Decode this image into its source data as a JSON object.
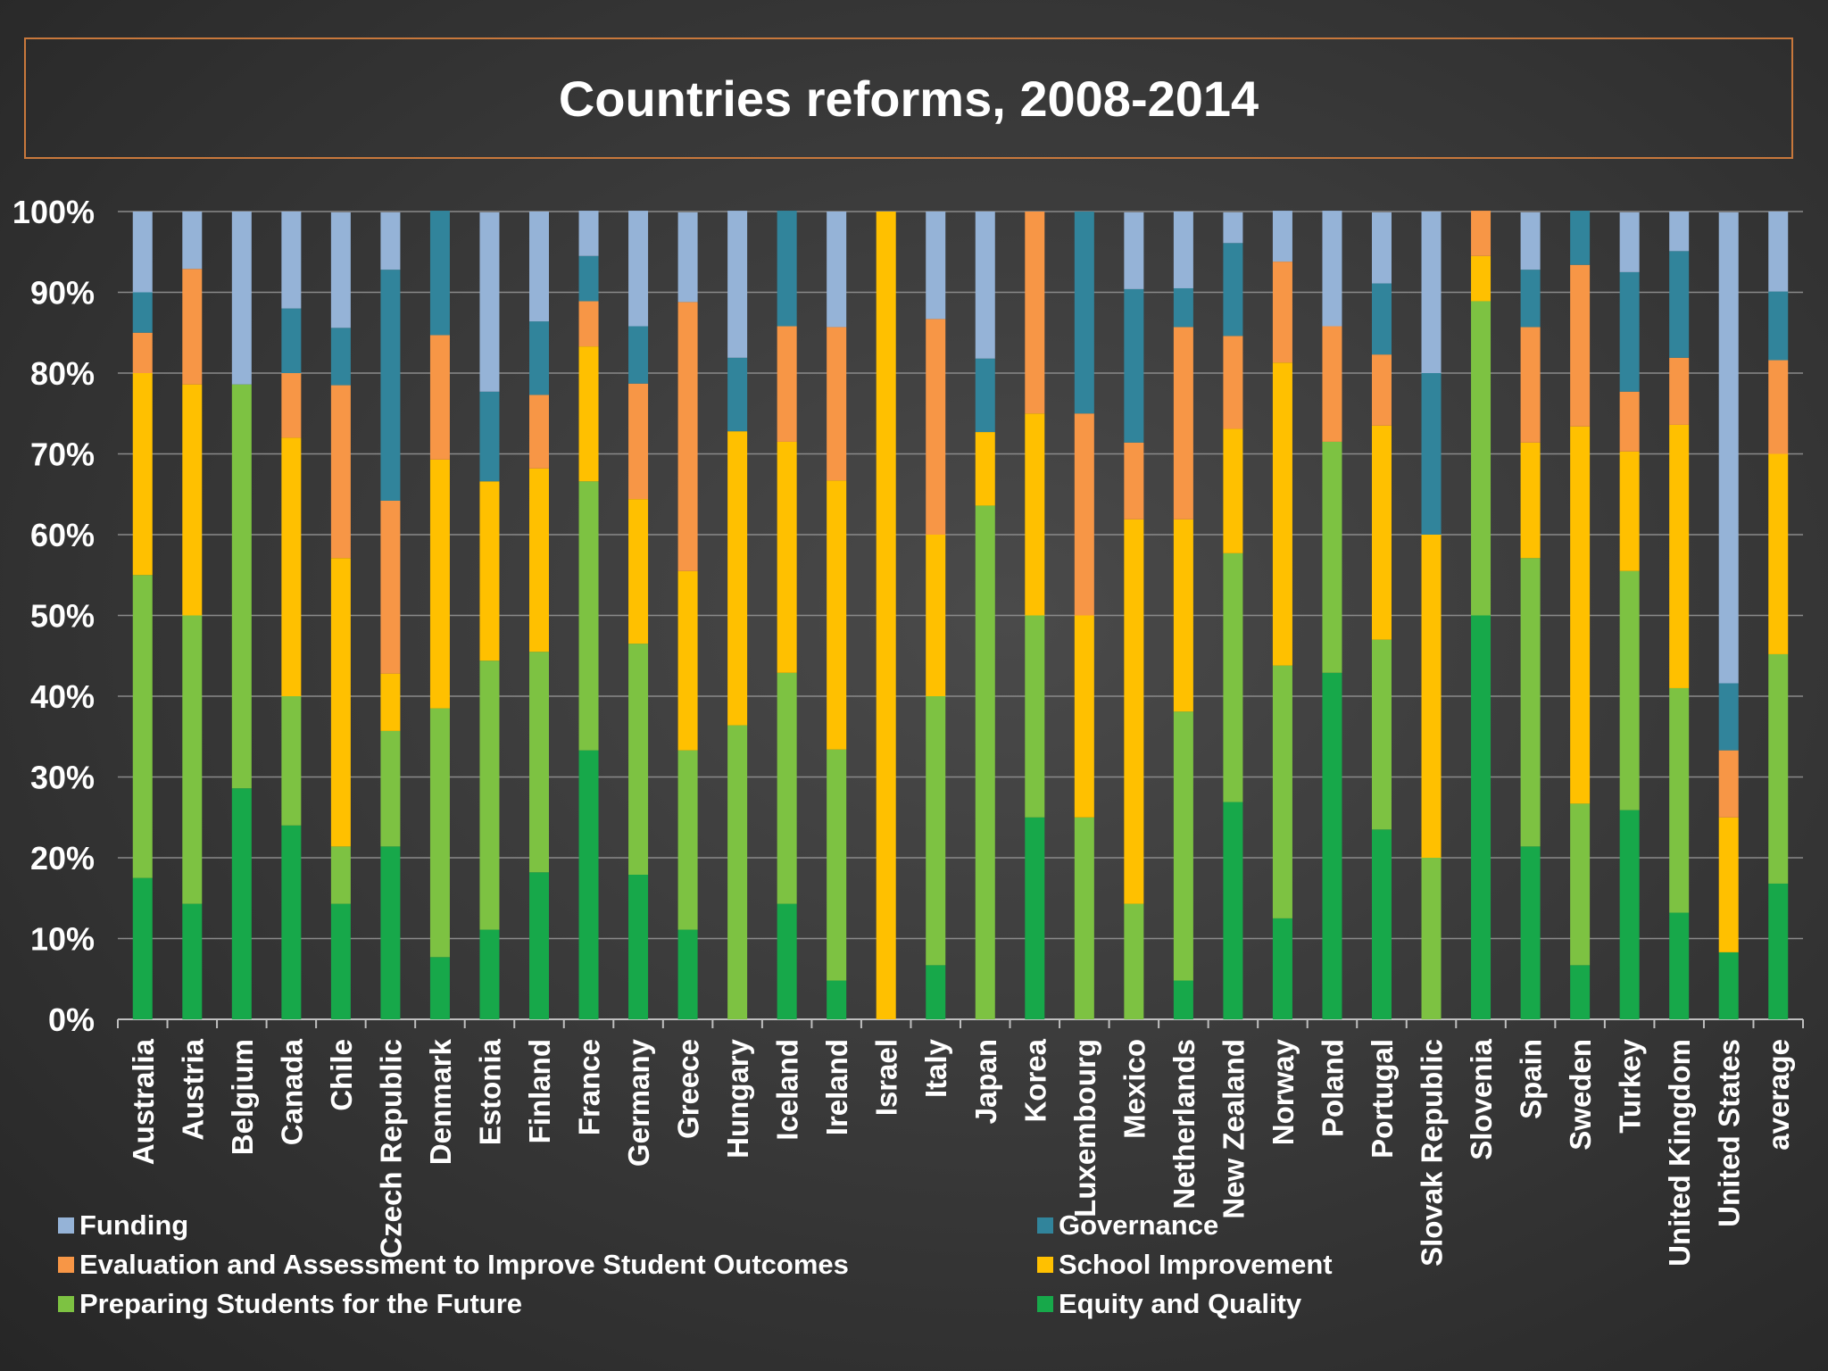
{
  "colors": {
    "background": "#333333",
    "title_border": "#c8783c",
    "gridline": "#8a8a8a",
    "text": "#ffffff"
  },
  "chart_data": {
    "type": "bar",
    "stacked": true,
    "normalized": true,
    "title": "Countries reforms, 2008-2014",
    "xlabel": "",
    "ylabel": "",
    "ylim": [
      0,
      100
    ],
    "y_ticks": [
      "0%",
      "10%",
      "20%",
      "30%",
      "40%",
      "50%",
      "60%",
      "70%",
      "80%",
      "90%",
      "100%"
    ],
    "grid": true,
    "legend_position": "bottom",
    "categories": [
      "Australia",
      "Austria",
      "Belgium",
      "Canada",
      "Chile",
      "Czech Republic",
      "Denmark",
      "Estonia",
      "Finland",
      "France",
      "Germany",
      "Greece",
      "Hungary",
      "Iceland",
      "Ireland",
      "Israel",
      "Italy",
      "Japan",
      "Korea",
      "Luxembourg",
      "Mexico",
      "Netherlands",
      "New Zealand",
      "Norway",
      "Poland",
      "Portugal",
      "Slovak Republic",
      "Slovenia",
      "Spain",
      "Sweden",
      "Turkey",
      "United Kingdom",
      "United States",
      "average"
    ],
    "series": [
      {
        "name": "Equity and Quality",
        "color": "#17a84a",
        "values": [
          17.5,
          14.3,
          28.6,
          24,
          14.3,
          21.4,
          7.7,
          11.1,
          18.2,
          33.3,
          17.9,
          11.1,
          0,
          14.3,
          4.8,
          0,
          6.7,
          0,
          25,
          0,
          0,
          4.8,
          26.9,
          12.5,
          42.9,
          23.5,
          0,
          50,
          21.4,
          6.7,
          25.9,
          13.2,
          8.3,
          16.8
        ]
      },
      {
        "name": "Preparing Students for the Future",
        "color": "#7dc242",
        "values": [
          37.5,
          35.7,
          50,
          16,
          7.1,
          14.3,
          30.8,
          33.3,
          27.3,
          33.3,
          28.6,
          22.2,
          36.4,
          28.6,
          28.6,
          0,
          33.3,
          63.6,
          25,
          25,
          14.3,
          33.3,
          30.8,
          31.3,
          28.6,
          23.5,
          20,
          38.9,
          35.7,
          20,
          29.6,
          27.8,
          0,
          28.4
        ]
      },
      {
        "name": "School Improvement",
        "color": "#ffc000",
        "values": [
          25,
          28.6,
          0,
          32,
          35.7,
          7.1,
          30.8,
          22.2,
          22.7,
          16.7,
          17.9,
          22.2,
          36.4,
          28.6,
          33.3,
          100,
          20,
          9.1,
          25,
          25,
          47.6,
          23.8,
          15.4,
          37.5,
          0,
          26.5,
          40,
          5.6,
          14.3,
          46.7,
          14.8,
          32.6,
          16.7,
          24.8
        ]
      },
      {
        "name": "Evaluation and Assessment to Improve Student Outcomes",
        "color": "#f79646",
        "values": [
          5,
          14.3,
          0,
          8,
          21.4,
          21.4,
          15.4,
          0,
          9.1,
          5.6,
          14.3,
          33.3,
          0,
          14.3,
          19,
          0,
          26.7,
          0,
          25,
          25,
          9.5,
          23.8,
          11.5,
          12.5,
          14.3,
          8.8,
          0,
          5.6,
          14.3,
          20,
          7.4,
          8.3,
          8.3,
          11.6
        ]
      },
      {
        "name": "Governance",
        "color": "#31849b",
        "values": [
          5,
          0,
          0,
          8,
          7.1,
          28.6,
          15.4,
          11.1,
          9.1,
          5.6,
          7.1,
          0,
          9.1,
          14.3,
          0,
          0,
          0,
          9.1,
          0,
          25,
          19,
          4.8,
          11.5,
          0,
          0,
          8.8,
          20,
          0,
          7.1,
          6.7,
          14.8,
          13.2,
          8.3,
          8.5
        ]
      },
      {
        "name": "Funding",
        "color": "#95b3d7",
        "values": [
          10,
          7.1,
          21.4,
          12,
          14.3,
          7.1,
          0,
          22.2,
          13.6,
          5.6,
          14.3,
          11.1,
          18.2,
          0,
          14.3,
          0,
          13.3,
          18.2,
          0,
          0,
          9.5,
          9.5,
          3.8,
          6.3,
          14.3,
          8.8,
          20,
          0,
          7.1,
          0,
          7.4,
          4.9,
          58.3,
          9.9
        ]
      }
    ]
  },
  "legend": {
    "items": [
      {
        "label": "Funding",
        "color": "#95b3d7"
      },
      {
        "label": "Governance",
        "color": "#31849b"
      },
      {
        "label": "Evaluation and Assessment to Improve Student Outcomes",
        "color": "#f79646"
      },
      {
        "label": "School Improvement",
        "color": "#ffc000"
      },
      {
        "label": "Preparing Students for the Future",
        "color": "#7dc242"
      },
      {
        "label": "Equity and Quality",
        "color": "#17a84a"
      }
    ]
  }
}
